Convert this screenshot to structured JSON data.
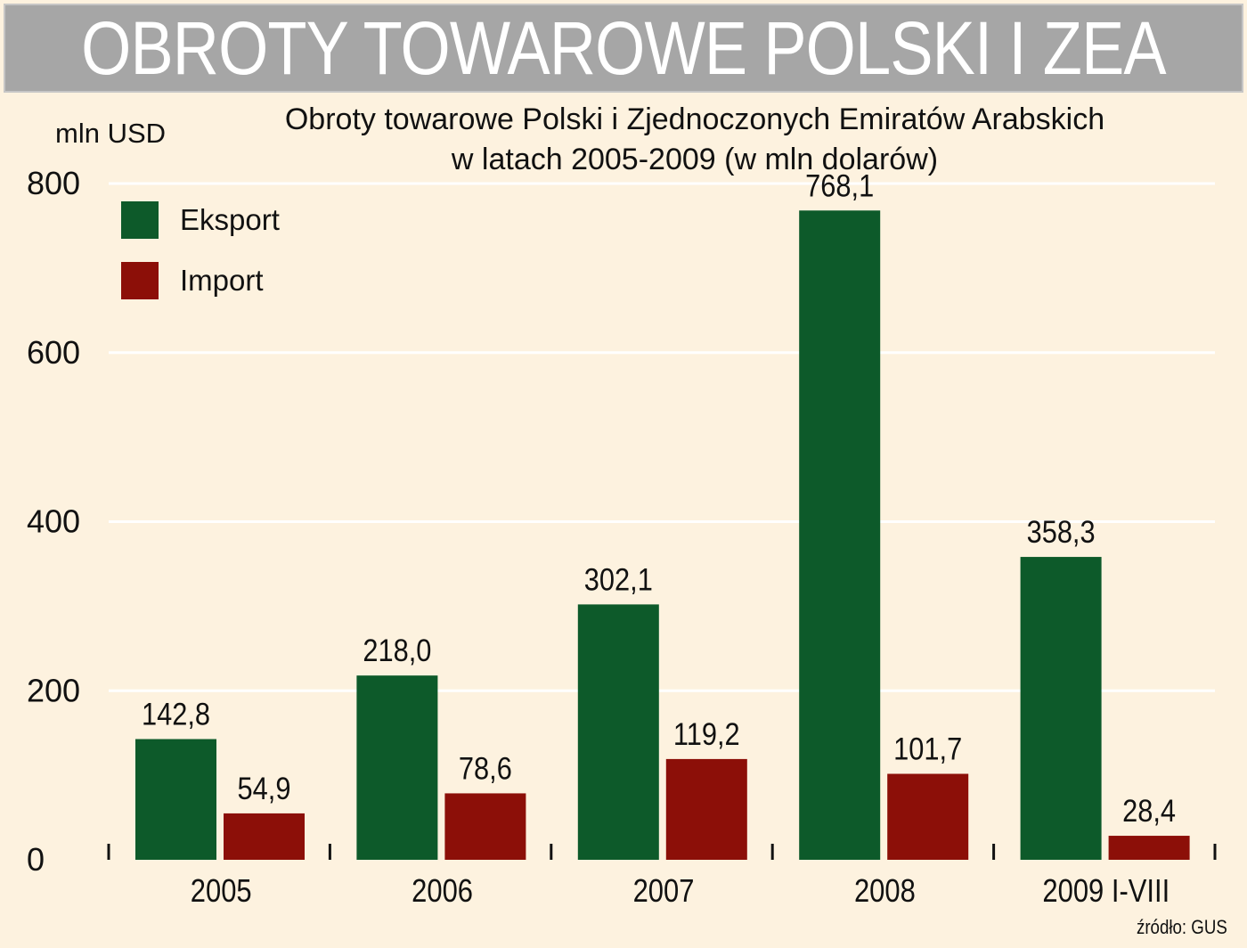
{
  "header": {
    "banner": "OBROTY TOWAROWE POLSKI I ZEA"
  },
  "chart_data": {
    "type": "bar",
    "title_line1": "Obroty towarowe Polski i Zjednoczonych Emiratów Arabskich",
    "title_line2": "w latach 2005-2009 (w mln dolarów)",
    "ylabel": "mln USD",
    "xlabel": "",
    "categories": [
      "2005",
      "2006",
      "2007",
      "2008",
      "2009 I-VIII"
    ],
    "series": [
      {
        "name": "Eksport",
        "color": "#0d5a2a",
        "values": [
          142.8,
          218.0,
          302.1,
          768.1,
          358.3
        ],
        "labels": [
          "142,8",
          "218,0",
          "302,1",
          "768,1",
          "358,3"
        ]
      },
      {
        "name": "Import",
        "color": "#8c0f08",
        "values": [
          54.9,
          78.6,
          119.2,
          101.7,
          28.4
        ],
        "labels": [
          "54,9",
          "78,6",
          "119,2",
          "101,7",
          "28,4"
        ]
      }
    ],
    "ylim": [
      0,
      800
    ],
    "yticks": [
      "0",
      "200",
      "400",
      "600",
      "800"
    ],
    "grid": true,
    "legend_position": "top-left"
  },
  "footer": {
    "source": "źródło: GUS"
  }
}
